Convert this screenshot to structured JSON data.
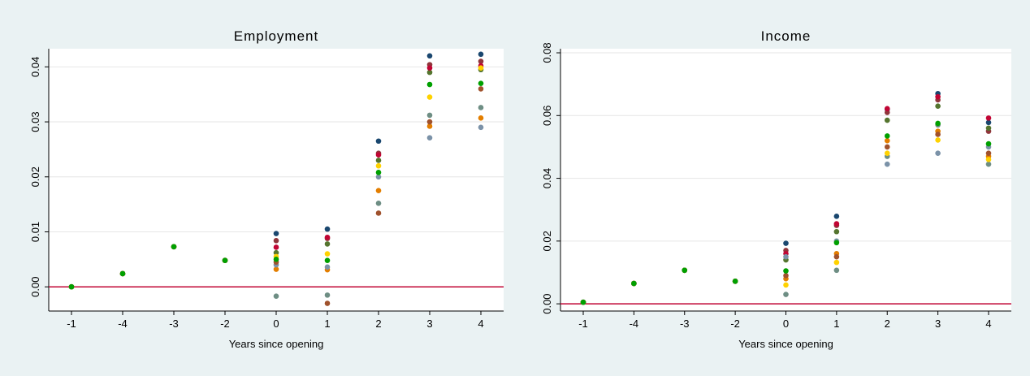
{
  "chart_data": [
    {
      "type": "scatter",
      "title": "Employment",
      "x_label": "Years since opening",
      "categories": [
        "-1",
        "-4",
        "-3",
        "-2",
        "0",
        "1",
        "2",
        "3",
        "4"
      ],
      "ylim": [
        -0.0044,
        0.0433
      ],
      "yticks": [
        {
          "value": 0,
          "label": "0.00"
        },
        {
          "value": 0.01,
          "label": "0.01"
        },
        {
          "value": 0.02,
          "label": "0.02"
        },
        {
          "value": 0.03,
          "label": "0.03"
        },
        {
          "value": 0.04,
          "label": "0.04"
        }
      ],
      "grid": true,
      "reference_line": 0,
      "reference_color": "#c10534",
      "series": [
        {
          "color": "#1a476f",
          "values": [
            0,
            0.0024,
            0.0073,
            0.0048,
            0.0097,
            0.0105,
            0.0265,
            0.042,
            0.0423
          ]
        },
        {
          "color": "#90353b",
          "values": [
            0,
            0.0024,
            0.0073,
            0.0048,
            0.0084,
            0.0088,
            0.0243,
            0.0404,
            0.041
          ]
        },
        {
          "color": "#55752f",
          "values": [
            0,
            0.0024,
            0.0073,
            0.0048,
            0.0062,
            0.0078,
            0.023,
            0.039,
            0.0395
          ]
        },
        {
          "color": "#e37e00",
          "values": [
            0,
            0.0024,
            0.0073,
            0.0048,
            0.0032,
            0.0031,
            0.0175,
            0.0292,
            0.0307
          ]
        },
        {
          "color": "#6e8e84",
          "values": [
            0,
            0.0024,
            0.0073,
            0.0048,
            -0.0017,
            -0.0015,
            0.0152,
            0.0312,
            0.0326
          ]
        },
        {
          "color": "#c10534",
          "values": [
            0,
            0.0024,
            0.0073,
            0.0048,
            0.0072,
            0.009,
            0.024,
            0.0398,
            0.0402
          ]
        },
        {
          "color": "#7b92a8",
          "values": [
            0,
            0.0024,
            0.0073,
            0.0048,
            0.004,
            0.0036,
            0.02,
            0.0271,
            0.029
          ]
        },
        {
          "color": "#ffd200",
          "values": [
            0,
            0.0024,
            0.0073,
            0.0048,
            0.0055,
            0.006,
            0.022,
            0.0345,
            0.0398
          ]
        },
        {
          "color": "#a0522d",
          "values": [
            0,
            0.0024,
            0.0073,
            0.0048,
            0.0045,
            -0.003,
            0.0134,
            0.03,
            0.036
          ]
        },
        {
          "color": "#00a000",
          "values": [
            0,
            0.0024,
            0.0073,
            0.0048,
            0.005,
            0.0048,
            0.0208,
            0.0368,
            0.037
          ]
        }
      ]
    },
    {
      "type": "scatter",
      "title": "Income",
      "x_label": "Years since opening",
      "categories": [
        "-1",
        "-4",
        "-3",
        "-2",
        "0",
        "1",
        "2",
        "3",
        "4"
      ],
      "ylim": [
        -0.0023,
        0.0813
      ],
      "yticks": [
        {
          "value": 0,
          "label": "0.00"
        },
        {
          "value": 0.02,
          "label": "0.02"
        },
        {
          "value": 0.04,
          "label": "0.04"
        },
        {
          "value": 0.06,
          "label": "0.06"
        },
        {
          "value": 0.08,
          "label": "0.08"
        }
      ],
      "grid": true,
      "reference_line": 0,
      "reference_color": "#c10534",
      "series": [
        {
          "color": "#1a476f",
          "values": [
            0.0005,
            0.0065,
            0.0107,
            0.0072,
            0.0193,
            0.0279,
            0.062,
            0.067,
            0.0578
          ]
        },
        {
          "color": "#90353b",
          "values": [
            0.0005,
            0.0065,
            0.0107,
            0.0072,
            0.017,
            0.025,
            0.061,
            0.065,
            0.055
          ]
        },
        {
          "color": "#55752f",
          "values": [
            0.0005,
            0.0065,
            0.0107,
            0.0072,
            0.014,
            0.023,
            0.0585,
            0.063,
            0.056
          ]
        },
        {
          "color": "#e37e00",
          "values": [
            0.0005,
            0.0065,
            0.0107,
            0.0072,
            0.008,
            0.016,
            0.052,
            0.055,
            0.047
          ]
        },
        {
          "color": "#6e8e84",
          "values": [
            0.0005,
            0.0065,
            0.0107,
            0.0072,
            0.003,
            0.0107,
            0.047,
            0.057,
            0.0445
          ]
        },
        {
          "color": "#c10534",
          "values": [
            0.0005,
            0.0065,
            0.0107,
            0.0072,
            0.016,
            0.0255,
            0.0622,
            0.066,
            0.0592
          ]
        },
        {
          "color": "#7b92a8",
          "values": [
            0.0005,
            0.0065,
            0.0107,
            0.0072,
            0.015,
            0.02,
            0.0445,
            0.048,
            0.05
          ]
        },
        {
          "color": "#ffd200",
          "values": [
            0.0005,
            0.0065,
            0.0107,
            0.0072,
            0.006,
            0.0132,
            0.048,
            0.0522,
            0.046
          ]
        },
        {
          "color": "#a0522d",
          "values": [
            0.0005,
            0.0065,
            0.0107,
            0.0072,
            0.009,
            0.015,
            0.05,
            0.054,
            0.048
          ]
        },
        {
          "color": "#00a000",
          "values": [
            0.0005,
            0.0065,
            0.0107,
            0.0072,
            0.0105,
            0.0195,
            0.0535,
            0.0575,
            0.051
          ]
        }
      ]
    }
  ]
}
